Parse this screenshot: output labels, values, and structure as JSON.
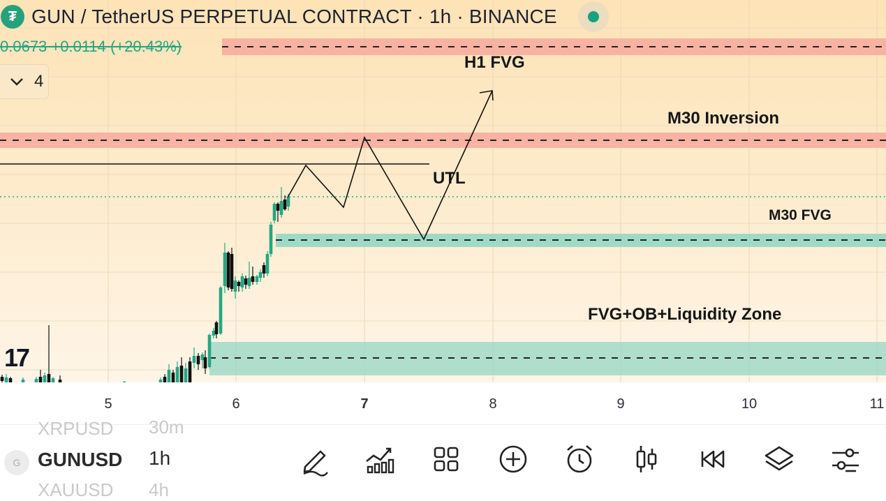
{
  "header": {
    "title": "GUN / TetherUS PERPETUAL CONTRACT · 1h · BINANCE",
    "icon": "tether-icon",
    "price_change": "0.0673 +0.0114 (+20.43%)",
    "indicators_count": "4"
  },
  "colors": {
    "accent": "#26a17b",
    "red_zone": "#f7a99e",
    "green_zone": "#95d7c4",
    "bull_candle": "#22a884",
    "bear_candle": "#111111"
  },
  "annotations": {
    "h1_fvg": "H1 FVG",
    "m30_inversion": "M30 Inversion",
    "utl": "UTL",
    "m30_fvg": "M30 FVG",
    "fvg_ob_liquidity": "FVG+OB+Liquidity Zone"
  },
  "x_axis": {
    "ticks": [
      "5",
      "6",
      "7",
      "8",
      "9",
      "10",
      "11"
    ],
    "highlighted": "7"
  },
  "branding": {
    "logo_text": "17"
  },
  "bottom": {
    "symbols": {
      "prev": "XRPUSD",
      "current": "GUNUSD",
      "next": "XAUUSD",
      "avatar": "G"
    },
    "timeframes": {
      "prev": "30m",
      "current": "1h",
      "next": "4h"
    },
    "tools": [
      "pencil-icon",
      "indicators-icon",
      "grid-icon",
      "add-icon",
      "alarm-icon",
      "candles-icon",
      "replay-icon",
      "layers-icon",
      "settings-icon"
    ]
  }
}
